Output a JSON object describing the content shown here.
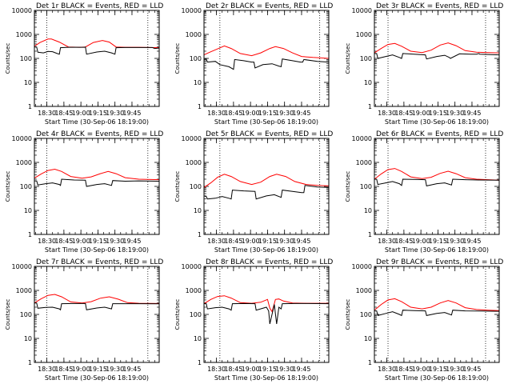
{
  "chart_data": [
    {
      "type": "line",
      "title": "Det 1r BLACK = Events, RED = LLD",
      "xlabel": "Start Time (30-Sep-06 18:19:00)",
      "ylabel": "Counts/sec",
      "yscale": "log",
      "ylim": [
        1,
        10000
      ],
      "x_ticks": [
        "18:30",
        "18:45",
        "19:00",
        "19:15",
        "19:30",
        "19:45"
      ],
      "y_ticks": [
        "1",
        "10",
        "100",
        "1000",
        "10000"
      ],
      "vlines_min": [
        11,
        100
      ],
      "series": [
        {
          "color": "#ff0000",
          "x": [
            0,
            5,
            12,
            15,
            22,
            30,
            40,
            45,
            52,
            60,
            66,
            72,
            80,
            92,
            110
          ],
          "values": [
            320,
            460,
            640,
            640,
            480,
            300,
            290,
            300,
            460,
            560,
            480,
            300,
            290,
            290,
            280
          ]
        },
        {
          "color": "#000000",
          "x": [
            0,
            2,
            3,
            8,
            12,
            16,
            20,
            22,
            23,
            30,
            44,
            45,
            46,
            55,
            62,
            68,
            71,
            72,
            80,
            92,
            104,
            106,
            110
          ],
          "values": [
            300,
            300,
            180,
            170,
            195,
            190,
            160,
            150,
            280,
            290,
            290,
            300,
            150,
            185,
            200,
            170,
            150,
            280,
            285,
            285,
            285,
            260,
            270
          ]
        }
      ]
    },
    {
      "type": "line",
      "title": "Det 2r BLACK = Events, RED = LLD",
      "xlabel": "Start Time (30-Sep-06 18:19:00)",
      "ylabel": "Counts/sec",
      "yscale": "log",
      "ylim": [
        1,
        10000
      ],
      "x_ticks": [
        "18:30",
        "18:45",
        "19:00",
        "19:15",
        "19:30",
        "19:45"
      ],
      "y_ticks": [
        "1",
        "10",
        "100",
        "1000",
        "10000"
      ],
      "vlines_min": [
        14,
        102
      ],
      "series": [
        {
          "color": "#ff0000",
          "x": [
            0,
            5,
            12,
            18,
            24,
            32,
            42,
            50,
            58,
            63,
            70,
            78,
            86,
            96,
            110
          ],
          "values": [
            140,
            180,
            250,
            330,
            260,
            160,
            130,
            170,
            260,
            310,
            260,
            170,
            120,
            110,
            100
          ]
        },
        {
          "color": "#000000",
          "x": [
            0,
            2,
            3,
            10,
            14,
            22,
            26,
            27,
            35,
            42,
            44,
            45,
            52,
            60,
            66,
            68,
            69,
            78,
            85,
            87,
            88,
            100,
            110
          ],
          "values": [
            90,
            95,
            70,
            75,
            55,
            45,
            35,
            90,
            80,
            70,
            70,
            40,
            55,
            60,
            48,
            45,
            95,
            80,
            70,
            70,
            90,
            75,
            70
          ]
        }
      ]
    },
    {
      "type": "line",
      "title": "Det 3r BLACK = Events, RED = LLD",
      "xlabel": "Start Time (30-Sep-06 18:19:00)",
      "ylabel": "Counts/sec",
      "yscale": "log",
      "ylim": [
        1,
        10000
      ],
      "x_ticks": [
        "18:30",
        "18:45",
        "19:00",
        "19:15",
        "19:30",
        "19:45"
      ],
      "y_ticks": [
        "1",
        "10",
        "100",
        "1000",
        "10000"
      ],
      "vlines_min": [
        12,
        98
      ],
      "series": [
        {
          "color": "#ff0000",
          "x": [
            0,
            6,
            12,
            18,
            24,
            32,
            42,
            50,
            58,
            65,
            72,
            80,
            90,
            100,
            110
          ],
          "values": [
            170,
            260,
            380,
            420,
            320,
            200,
            175,
            220,
            360,
            440,
            340,
            210,
            180,
            175,
            170
          ]
        },
        {
          "color": "#000000",
          "x": [
            0,
            2,
            3,
            10,
            16,
            22,
            24,
            25,
            35,
            45,
            46,
            55,
            62,
            66,
            67,
            75,
            85,
            90,
            92,
            93,
            110
          ],
          "values": [
            160,
            160,
            100,
            120,
            140,
            110,
            100,
            160,
            150,
            140,
            95,
            120,
            135,
            110,
            100,
            155,
            150,
            150,
            160,
            150,
            140
          ]
        }
      ]
    },
    {
      "type": "line",
      "title": "Det 4r BLACK = Events, RED = LLD",
      "xlabel": "Start Time (30-Sep-06 18:19:00)",
      "ylabel": "Counts/sec",
      "yscale": "log",
      "ylim": [
        1,
        10000
      ],
      "x_ticks": [
        "18:30",
        "18:45",
        "19:00",
        "19:15",
        "19:30",
        "19:45"
      ],
      "y_ticks": [
        "1",
        "10",
        "100",
        "1000",
        "10000"
      ],
      "vlines_min": [
        11,
        100
      ],
      "series": [
        {
          "color": "#ff0000",
          "x": [
            0,
            6,
            12,
            18,
            24,
            32,
            42,
            50,
            58,
            65,
            72,
            80,
            92,
            110
          ],
          "values": [
            220,
            330,
            460,
            520,
            420,
            260,
            220,
            250,
            340,
            420,
            340,
            230,
            200,
            190
          ]
        },
        {
          "color": "#000000",
          "x": [
            0,
            2,
            3,
            10,
            16,
            22,
            23,
            24,
            35,
            45,
            46,
            55,
            62,
            68,
            69,
            80,
            92,
            110
          ],
          "values": [
            170,
            170,
            115,
            130,
            140,
            120,
            110,
            200,
            185,
            180,
            100,
            120,
            130,
            110,
            175,
            165,
            170,
            165
          ]
        }
      ]
    },
    {
      "type": "line",
      "title": "Det 5r BLACK = Events, RED = LLD",
      "xlabel": "Start Time (30-Sep-06 18:19:00)",
      "ylabel": "Counts/sec",
      "yscale": "log",
      "ylim": [
        1,
        10000
      ],
      "x_ticks": [
        "18:30",
        "18:45",
        "19:00",
        "19:15",
        "19:30",
        "19:45"
      ],
      "y_ticks": [
        "1",
        "10",
        "100",
        "1000",
        "10000"
      ],
      "vlines_min": [
        14,
        102
      ],
      "series": [
        {
          "color": "#ff0000",
          "x": [
            0,
            6,
            12,
            18,
            24,
            32,
            42,
            50,
            58,
            64,
            72,
            80,
            90,
            100,
            110
          ],
          "values": [
            90,
            140,
            240,
            320,
            260,
            160,
            120,
            150,
            260,
            320,
            260,
            160,
            120,
            110,
            105
          ]
        },
        {
          "color": "#000000",
          "x": [
            0,
            2,
            3,
            10,
            16,
            22,
            24,
            25,
            35,
            45,
            46,
            55,
            62,
            68,
            69,
            78,
            86,
            88,
            89,
            100,
            110
          ],
          "values": [
            40,
            38,
            30,
            32,
            38,
            32,
            30,
            70,
            65,
            62,
            30,
            40,
            45,
            35,
            70,
            62,
            55,
            55,
            110,
            95,
            90
          ]
        }
      ]
    },
    {
      "type": "line",
      "title": "Det 6r BLACK = Events, RED = LLD",
      "xlabel": "Start Time (30-Sep-06 18:19:00)",
      "ylabel": "Counts/sec",
      "yscale": "log",
      "ylim": [
        1,
        10000
      ],
      "x_ticks": [
        "18:30",
        "18:45",
        "19:00",
        "19:15",
        "19:30",
        "19:45"
      ],
      "y_ticks": [
        "1",
        "10",
        "100",
        "1000",
        "10000"
      ],
      "vlines_min": [
        12,
        98
      ],
      "series": [
        {
          "color": "#ff0000",
          "x": [
            0,
            6,
            12,
            18,
            24,
            32,
            42,
            50,
            58,
            65,
            72,
            80,
            90,
            100,
            110
          ],
          "values": [
            200,
            330,
            500,
            560,
            420,
            250,
            210,
            240,
            350,
            430,
            340,
            230,
            200,
            190,
            180
          ]
        },
        {
          "color": "#000000",
          "x": [
            0,
            2,
            3,
            10,
            16,
            22,
            24,
            25,
            35,
            45,
            46,
            55,
            62,
            68,
            69,
            80,
            92,
            110
          ],
          "values": [
            200,
            200,
            120,
            140,
            160,
            130,
            110,
            200,
            195,
            190,
            105,
            130,
            140,
            115,
            200,
            190,
            185,
            180
          ]
        }
      ]
    },
    {
      "type": "line",
      "title": "Det 7r BLACK = Events, RED = LLD",
      "xlabel": "Start Time (30-Sep-06 18:19:00)",
      "ylabel": "Counts/sec",
      "yscale": "log",
      "ylim": [
        1,
        10000
      ],
      "x_ticks": [
        "18:30",
        "18:45",
        "19:00",
        "19:15",
        "19:30",
        "19:45"
      ],
      "y_ticks": [
        "1",
        "10",
        "100",
        "1000",
        "10000"
      ],
      "vlines_min": [
        11,
        100
      ],
      "series": [
        {
          "color": "#ff0000",
          "x": [
            0,
            6,
            12,
            18,
            24,
            32,
            42,
            50,
            58,
            66,
            74,
            82,
            92,
            110
          ],
          "values": [
            300,
            450,
            620,
            680,
            540,
            330,
            300,
            340,
            470,
            540,
            430,
            310,
            290,
            285
          ]
        },
        {
          "color": "#000000",
          "x": [
            0,
            2,
            3,
            10,
            16,
            22,
            23,
            24,
            35,
            45,
            46,
            55,
            62,
            68,
            69,
            80,
            92,
            110
          ],
          "values": [
            300,
            300,
            180,
            195,
            200,
            170,
            155,
            280,
            285,
            285,
            155,
            185,
            200,
            170,
            280,
            280,
            280,
            275
          ]
        }
      ]
    },
    {
      "type": "line",
      "title": "Det 8r BLACK = Events, RED = LLD",
      "xlabel": "Start Time (30-Sep-06 18:19:00)",
      "ylabel": "Counts/sec",
      "yscale": "log",
      "ylim": [
        1,
        10000
      ],
      "x_ticks": [
        "18:30",
        "18:45",
        "19:00",
        "19:15",
        "19:30",
        "19:45"
      ],
      "y_ticks": [
        "1",
        "10",
        "100",
        "1000",
        "10000"
      ],
      "vlines_min": [
        14,
        102
      ],
      "series": [
        {
          "color": "#ff0000",
          "x": [
            0,
            6,
            12,
            18,
            24,
            32,
            42,
            50,
            56,
            58,
            60,
            63,
            66,
            70,
            78,
            90,
            110
          ],
          "values": [
            280,
            420,
            560,
            600,
            480,
            310,
            290,
            320,
            420,
            180,
            130,
            420,
            440,
            360,
            300,
            290,
            290
          ]
        },
        {
          "color": "#000000",
          "x": [
            0,
            2,
            3,
            10,
            16,
            22,
            24,
            25,
            35,
            45,
            46,
            55,
            57,
            58,
            62,
            64,
            66,
            68,
            69,
            80,
            92,
            110
          ],
          "values": [
            280,
            280,
            170,
            190,
            200,
            170,
            150,
            280,
            285,
            280,
            150,
            200,
            140,
            40,
            260,
            40,
            200,
            170,
            280,
            285,
            285,
            280
          ]
        }
      ]
    },
    {
      "type": "line",
      "title": "Det 9r BLACK = Events, RED = LLD",
      "xlabel": "Start Time (30-Sep-06 18:19:00)",
      "ylabel": "Counts/sec",
      "yscale": "log",
      "ylim": [
        1,
        10000
      ],
      "x_ticks": [
        "18:30",
        "18:45",
        "19:00",
        "19:15",
        "19:30",
        "19:45"
      ],
      "y_ticks": [
        "1",
        "10",
        "100",
        "1000",
        "10000"
      ],
      "vlines_min": [
        12,
        98
      ],
      "series": [
        {
          "color": "#ff0000",
          "x": [
            0,
            6,
            12,
            18,
            24,
            32,
            42,
            50,
            58,
            65,
            72,
            80,
            90,
            100,
            110
          ],
          "values": [
            150,
            260,
            400,
            450,
            340,
            200,
            170,
            200,
            300,
            380,
            300,
            190,
            160,
            150,
            145
          ]
        },
        {
          "color": "#000000",
          "x": [
            0,
            2,
            3,
            10,
            16,
            22,
            24,
            25,
            35,
            45,
            46,
            55,
            62,
            68,
            69,
            80,
            92,
            110
          ],
          "values": [
            140,
            140,
            90,
            110,
            130,
            100,
            90,
            150,
            145,
            140,
            90,
            110,
            120,
            95,
            150,
            140,
            138,
            135
          ]
        }
      ]
    }
  ]
}
